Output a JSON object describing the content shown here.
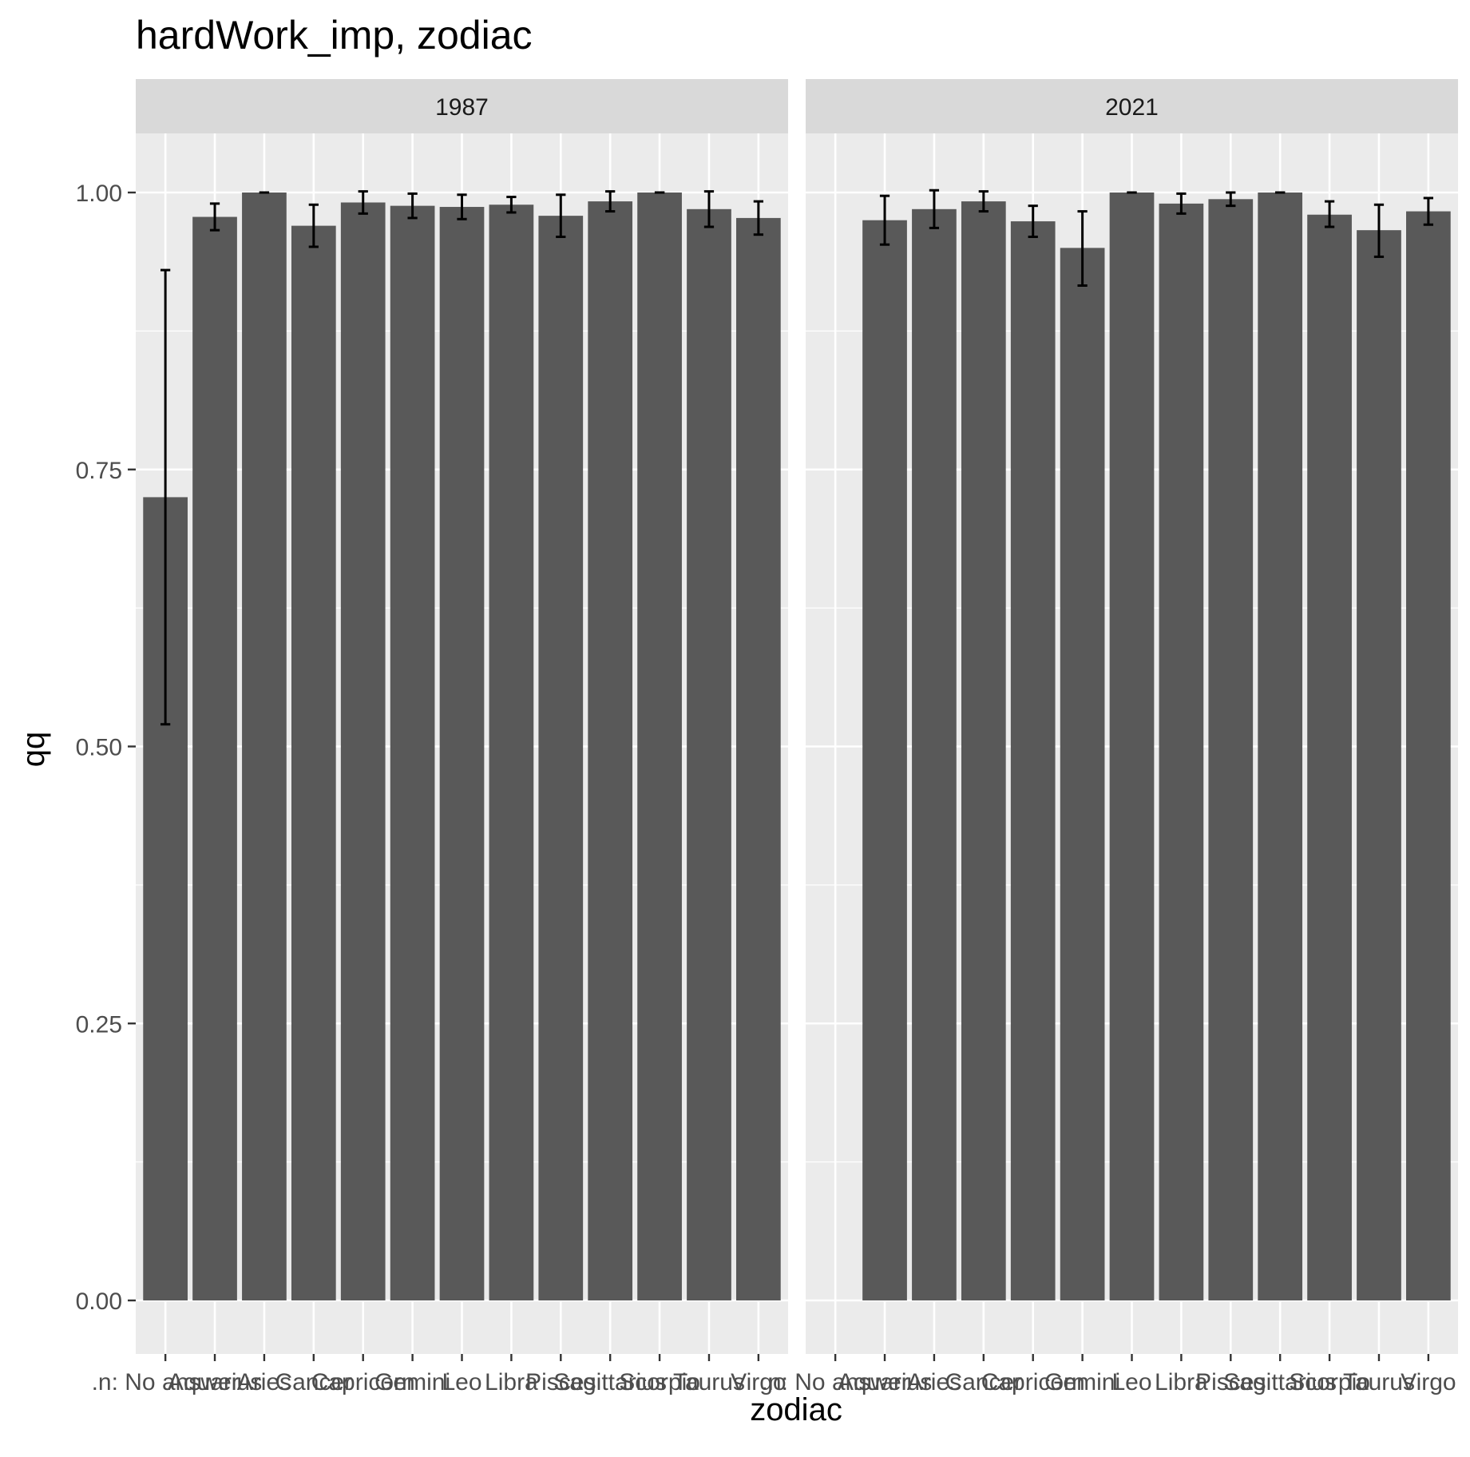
{
  "chart_data": {
    "type": "bar",
    "title": "hardWork_imp, zodiac",
    "xlabel": "zodiac",
    "ylabel": "qq",
    "ylim": [
      -0.05,
      1.06
    ],
    "yticks": [
      0.0,
      0.25,
      0.5,
      0.75,
      1.0
    ],
    "ytick_labels": [
      "0.00",
      "0.25",
      "0.50",
      "0.75",
      "1.00"
    ],
    "categories": [
      ".n:  No answer",
      "Aquarius",
      "Aries",
      "Cancer",
      "Capricorn",
      "Gemini",
      "Leo",
      "Libra",
      "Pisces",
      "Sagittarius",
      "Scorpio",
      "Taurus",
      "Virgo"
    ],
    "grid": true,
    "facets": [
      {
        "label": "1987",
        "values": [
          0.725,
          0.978,
          1.0,
          0.97,
          0.991,
          0.988,
          0.987,
          0.989,
          0.979,
          0.992,
          1.0,
          0.985,
          0.977
        ],
        "error_low": [
          0.52,
          0.966,
          1.0,
          0.951,
          0.981,
          0.977,
          0.976,
          0.982,
          0.96,
          0.983,
          1.0,
          0.969,
          0.962
        ],
        "error_high": [
          0.93,
          0.99,
          1.0,
          0.989,
          1.001,
          0.999,
          0.998,
          0.996,
          0.998,
          1.001,
          1.0,
          1.001,
          0.992
        ]
      },
      {
        "label": "2021",
        "values": [
          null,
          0.975,
          0.985,
          0.992,
          0.974,
          0.95,
          1.0,
          0.99,
          0.994,
          1.0,
          0.98,
          0.966,
          0.983
        ],
        "error_low": [
          null,
          0.953,
          0.968,
          0.983,
          0.96,
          0.916,
          1.0,
          0.981,
          0.988,
          1.0,
          0.969,
          0.942,
          0.971
        ],
        "error_high": [
          null,
          0.997,
          1.002,
          1.001,
          0.988,
          0.983,
          1.0,
          0.999,
          1.0,
          1.0,
          0.992,
          0.989,
          0.995
        ]
      }
    ],
    "colors": {
      "bar": "#595959",
      "panel_bg": "#ebebeb",
      "strip_bg": "#d9d9d9",
      "grid": "#ffffff",
      "errorbar": "#000000"
    }
  }
}
